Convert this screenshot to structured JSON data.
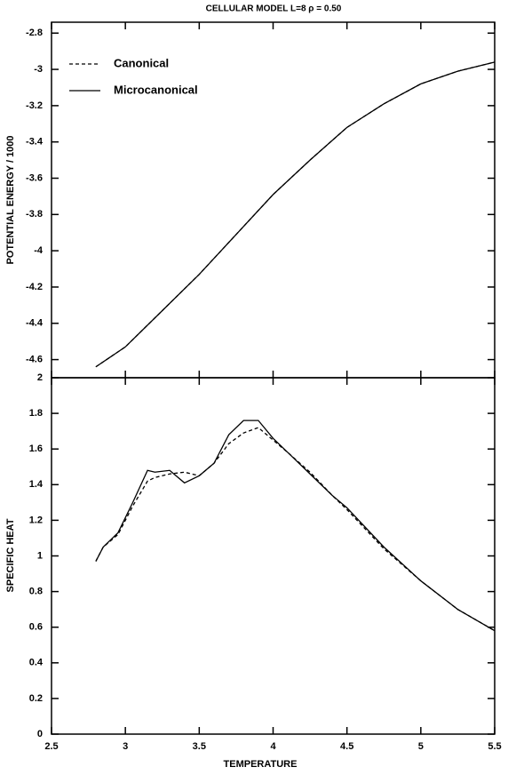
{
  "chart_data": [
    {
      "type": "line",
      "title": "CELLULAR MODEL  L=8  ρ = 0.50",
      "ylabel": "POTENTIAL ENERGY / 1000",
      "x": [
        2.8,
        3.0,
        3.25,
        3.5,
        3.75,
        4.0,
        4.25,
        4.5,
        4.75,
        5.0,
        5.25,
        5.5
      ],
      "xlim": [
        2.5,
        5.5
      ],
      "xticks": [
        2.5,
        3,
        3.5,
        4,
        4.5,
        5,
        5.5
      ],
      "ylim": [
        -4.7,
        -2.74
      ],
      "yticks": [
        -4.6,
        -4.4,
        -4.2,
        -4,
        -3.8,
        -3.6,
        -3.4,
        -3.2,
        -3,
        -2.8
      ],
      "legend": "upper left",
      "series": [
        {
          "name": "Canonical",
          "color": "#000000",
          "dash": "dashed",
          "values": [
            -4.64,
            -4.53,
            -4.33,
            -4.13,
            -3.91,
            -3.69,
            -3.5,
            -3.32,
            -3.19,
            -3.08,
            -3.01,
            -2.96
          ]
        },
        {
          "name": "Microcanonical",
          "color": "#000000",
          "dash": "solid",
          "values": [
            -4.64,
            -4.53,
            -4.33,
            -4.13,
            -3.91,
            -3.69,
            -3.5,
            -3.32,
            -3.19,
            -3.08,
            -3.01,
            -2.96
          ]
        }
      ]
    },
    {
      "type": "line",
      "xlabel": "TEMPERATURE",
      "ylabel": "SPECIFIC HEAT",
      "x": [
        2.8,
        2.85,
        2.95,
        3.05,
        3.15,
        3.2,
        3.3,
        3.4,
        3.5,
        3.6,
        3.7,
        3.8,
        3.9,
        4.0,
        4.1,
        4.25,
        4.4,
        4.5,
        4.75,
        5.0,
        5.25,
        5.5
      ],
      "xlim": [
        2.5,
        5.5
      ],
      "xticks": [
        2.5,
        3,
        3.5,
        4,
        4.5,
        5,
        5.5
      ],
      "ylim": [
        0,
        2
      ],
      "yticks": [
        0,
        0.2,
        0.4,
        0.6,
        0.8,
        1,
        1.2,
        1.4,
        1.6,
        1.8,
        2
      ],
      "series": [
        {
          "color": "#000000",
          "dash": "dashed",
          "values": [
            0.97,
            1.05,
            1.12,
            1.28,
            1.42,
            1.44,
            1.46,
            1.47,
            1.45,
            1.52,
            1.63,
            1.69,
            1.72,
            1.65,
            1.58,
            1.47,
            1.34,
            1.26,
            1.04,
            0.86,
            0.7,
            0.58
          ]
        },
        {
          "color": "#000000",
          "dash": "solid",
          "values": [
            0.97,
            1.05,
            1.13,
            1.3,
            1.48,
            1.47,
            1.48,
            1.41,
            1.45,
            1.52,
            1.68,
            1.76,
            1.76,
            1.66,
            1.58,
            1.46,
            1.34,
            1.27,
            1.05,
            0.86,
            0.7,
            0.58
          ]
        }
      ]
    }
  ]
}
